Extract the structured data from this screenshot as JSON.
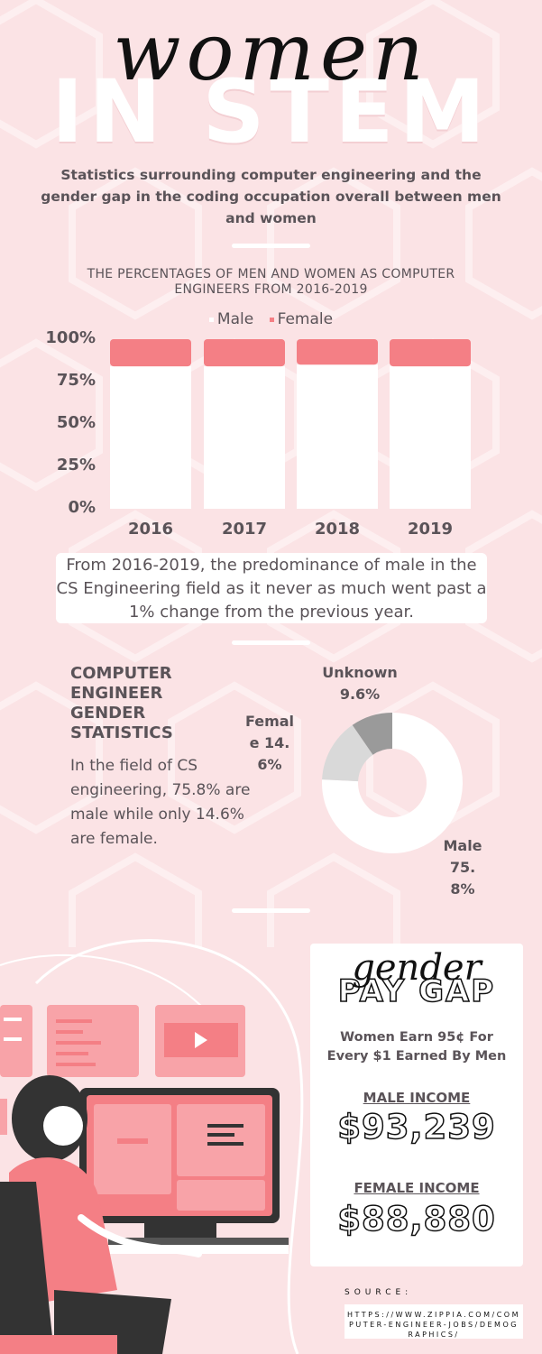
{
  "header": {
    "script_title": "women",
    "big_title": "IN STEM",
    "subtitle": "Statistics surrounding computer engineering and the gender gap in the coding occupation overall between men and women"
  },
  "bar_section": {
    "chart_data": {
      "type": "bar",
      "title": "THE PERCENTAGES OF MEN AND WOMEN AS COMPUTER ENGINEERS FROM 2016-2019",
      "categories": [
        "2016",
        "2017",
        "2018",
        "2019"
      ],
      "series": [
        {
          "name": "Male",
          "values": [
            84,
            84,
            85,
            84
          ],
          "color": "#ffffff"
        },
        {
          "name": "Female",
          "values": [
            16,
            16,
            15,
            16
          ],
          "color": "#f47f85"
        }
      ],
      "stacked": true,
      "ylim": [
        0,
        100
      ],
      "y_ticks": [
        "100%",
        "75%",
        "50%",
        "25%",
        "0%"
      ],
      "y_tick_values": [
        100,
        75,
        50,
        25,
        0
      ],
      "legend": "top-center",
      "grid": false
    },
    "note": "From 2016-2019, the predominance of male in the CS Engineering field as it never as much went past a 1% change from the previous year."
  },
  "gender_section": {
    "heading": "COMPUTER ENGINEER GENDER STATISTICS",
    "text": "In the field of CS engineering, 75.8% are male while only 14.6% are female.",
    "pie_chart": {
      "type": "pie",
      "donut": true,
      "slices": [
        {
          "label": "Male 75.8%",
          "value": 75.8,
          "color": "#ffffff"
        },
        {
          "label": "Female 14.6%",
          "value": 14.6,
          "color": "#d9d9d9"
        },
        {
          "label": "Unknown 9.6%",
          "value": 9.6,
          "color": "#9a9a9a"
        }
      ]
    }
  },
  "pay_gap": {
    "script": "gender",
    "title": "PAY GAP",
    "subtitle": "Women Earn 95¢ For Every $1 Earned By Men",
    "male_label": "MALE INCOME",
    "male_value": "$93,239",
    "female_label": "FEMALE INCOME",
    "female_value": "$88,880"
  },
  "source": {
    "label": "SOURCE:",
    "url": "HTTPS://WWW.ZIPPIA.COM/COMPUTER-ENGINEER-JOBS/DEMOGRAPHICS/"
  },
  "colors": {
    "background": "#fbe3e5",
    "accent": "#f47f85",
    "text": "#5a5358"
  }
}
